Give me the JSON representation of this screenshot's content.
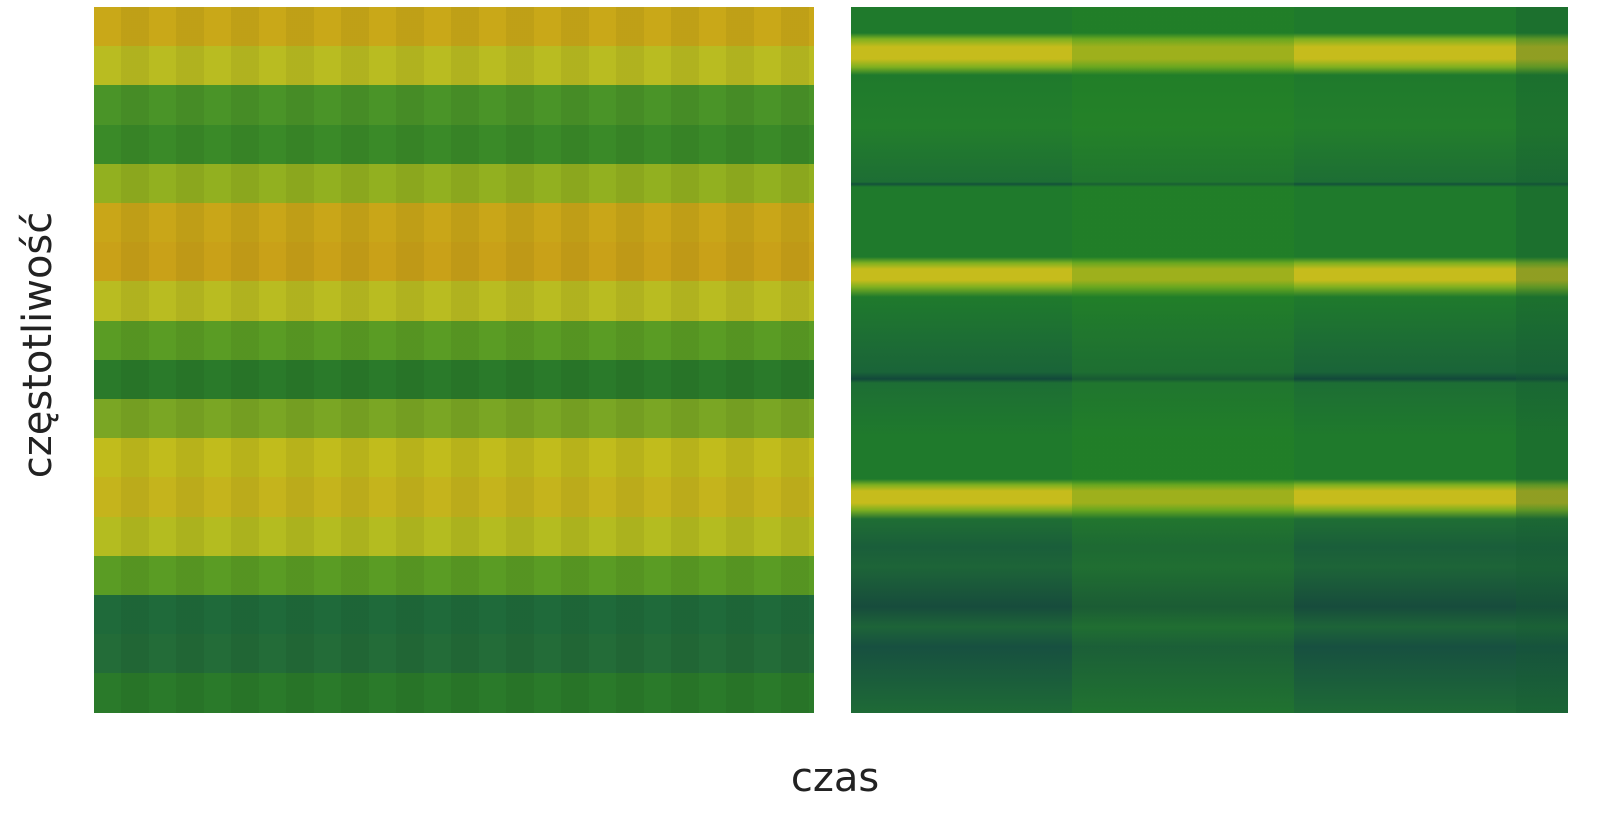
{
  "axes": {
    "y_label": "częstotliwość",
    "x_label": "czas"
  }
}
